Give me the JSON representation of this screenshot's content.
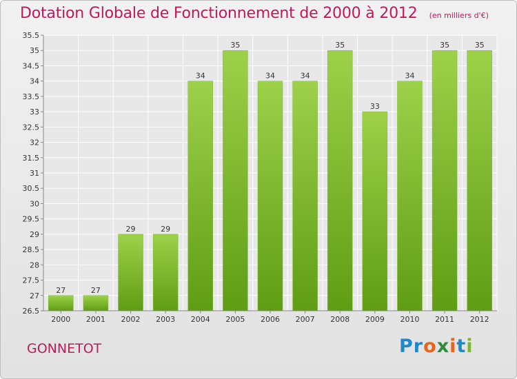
{
  "header": {
    "title": "Dotation Globale de Fonctionnement de 2000 à 2012",
    "unit": "(en milliers d'€)"
  },
  "footer": {
    "commune": "GONNETOT",
    "logo_letters": [
      {
        "char": "P",
        "color": "#1e88c8"
      },
      {
        "char": "r",
        "color": "#1e88c8"
      },
      {
        "char": "o",
        "color": "#e8641b"
      },
      {
        "char": "x",
        "color": "#2e8b3c"
      },
      {
        "char": "i",
        "color": "#e8641b"
      },
      {
        "char": "t",
        "color": "#1e88c8"
      },
      {
        "char": "i",
        "color": "#7cb82f"
      }
    ]
  },
  "colors": {
    "accent": "#c0185a",
    "bar_light": "#9dd14a",
    "bar_dark": "#5f9d14",
    "grid": "#ffffff",
    "axis_text": "#333333"
  },
  "chart_data": {
    "type": "bar",
    "categories": [
      "2000",
      "2001",
      "2002",
      "2003",
      "2004",
      "2005",
      "2006",
      "2007",
      "2008",
      "2009",
      "2010",
      "2011",
      "2012"
    ],
    "values": [
      27,
      27,
      29,
      29,
      34,
      35,
      34,
      34,
      35,
      33,
      34,
      35,
      35
    ],
    "data_labels": [
      "27",
      "27",
      "29",
      "29",
      "34",
      "35",
      "34",
      "34",
      "35",
      "33",
      "34",
      "35",
      "35"
    ],
    "title": "Dotation Globale de Fonctionnement de 2000 à 2012",
    "xlabel": "",
    "ylabel": "",
    "ylim": [
      26.5,
      35.5
    ],
    "yticks": [
      "26.5",
      "27",
      "27.5",
      "28",
      "28.5",
      "29",
      "29.5",
      "30",
      "30.5",
      "31",
      "31.5",
      "32",
      "32.5",
      "33",
      "33.5",
      "34",
      "34.5",
      "35",
      "35.5"
    ],
    "grid": true,
    "legend": "none"
  }
}
